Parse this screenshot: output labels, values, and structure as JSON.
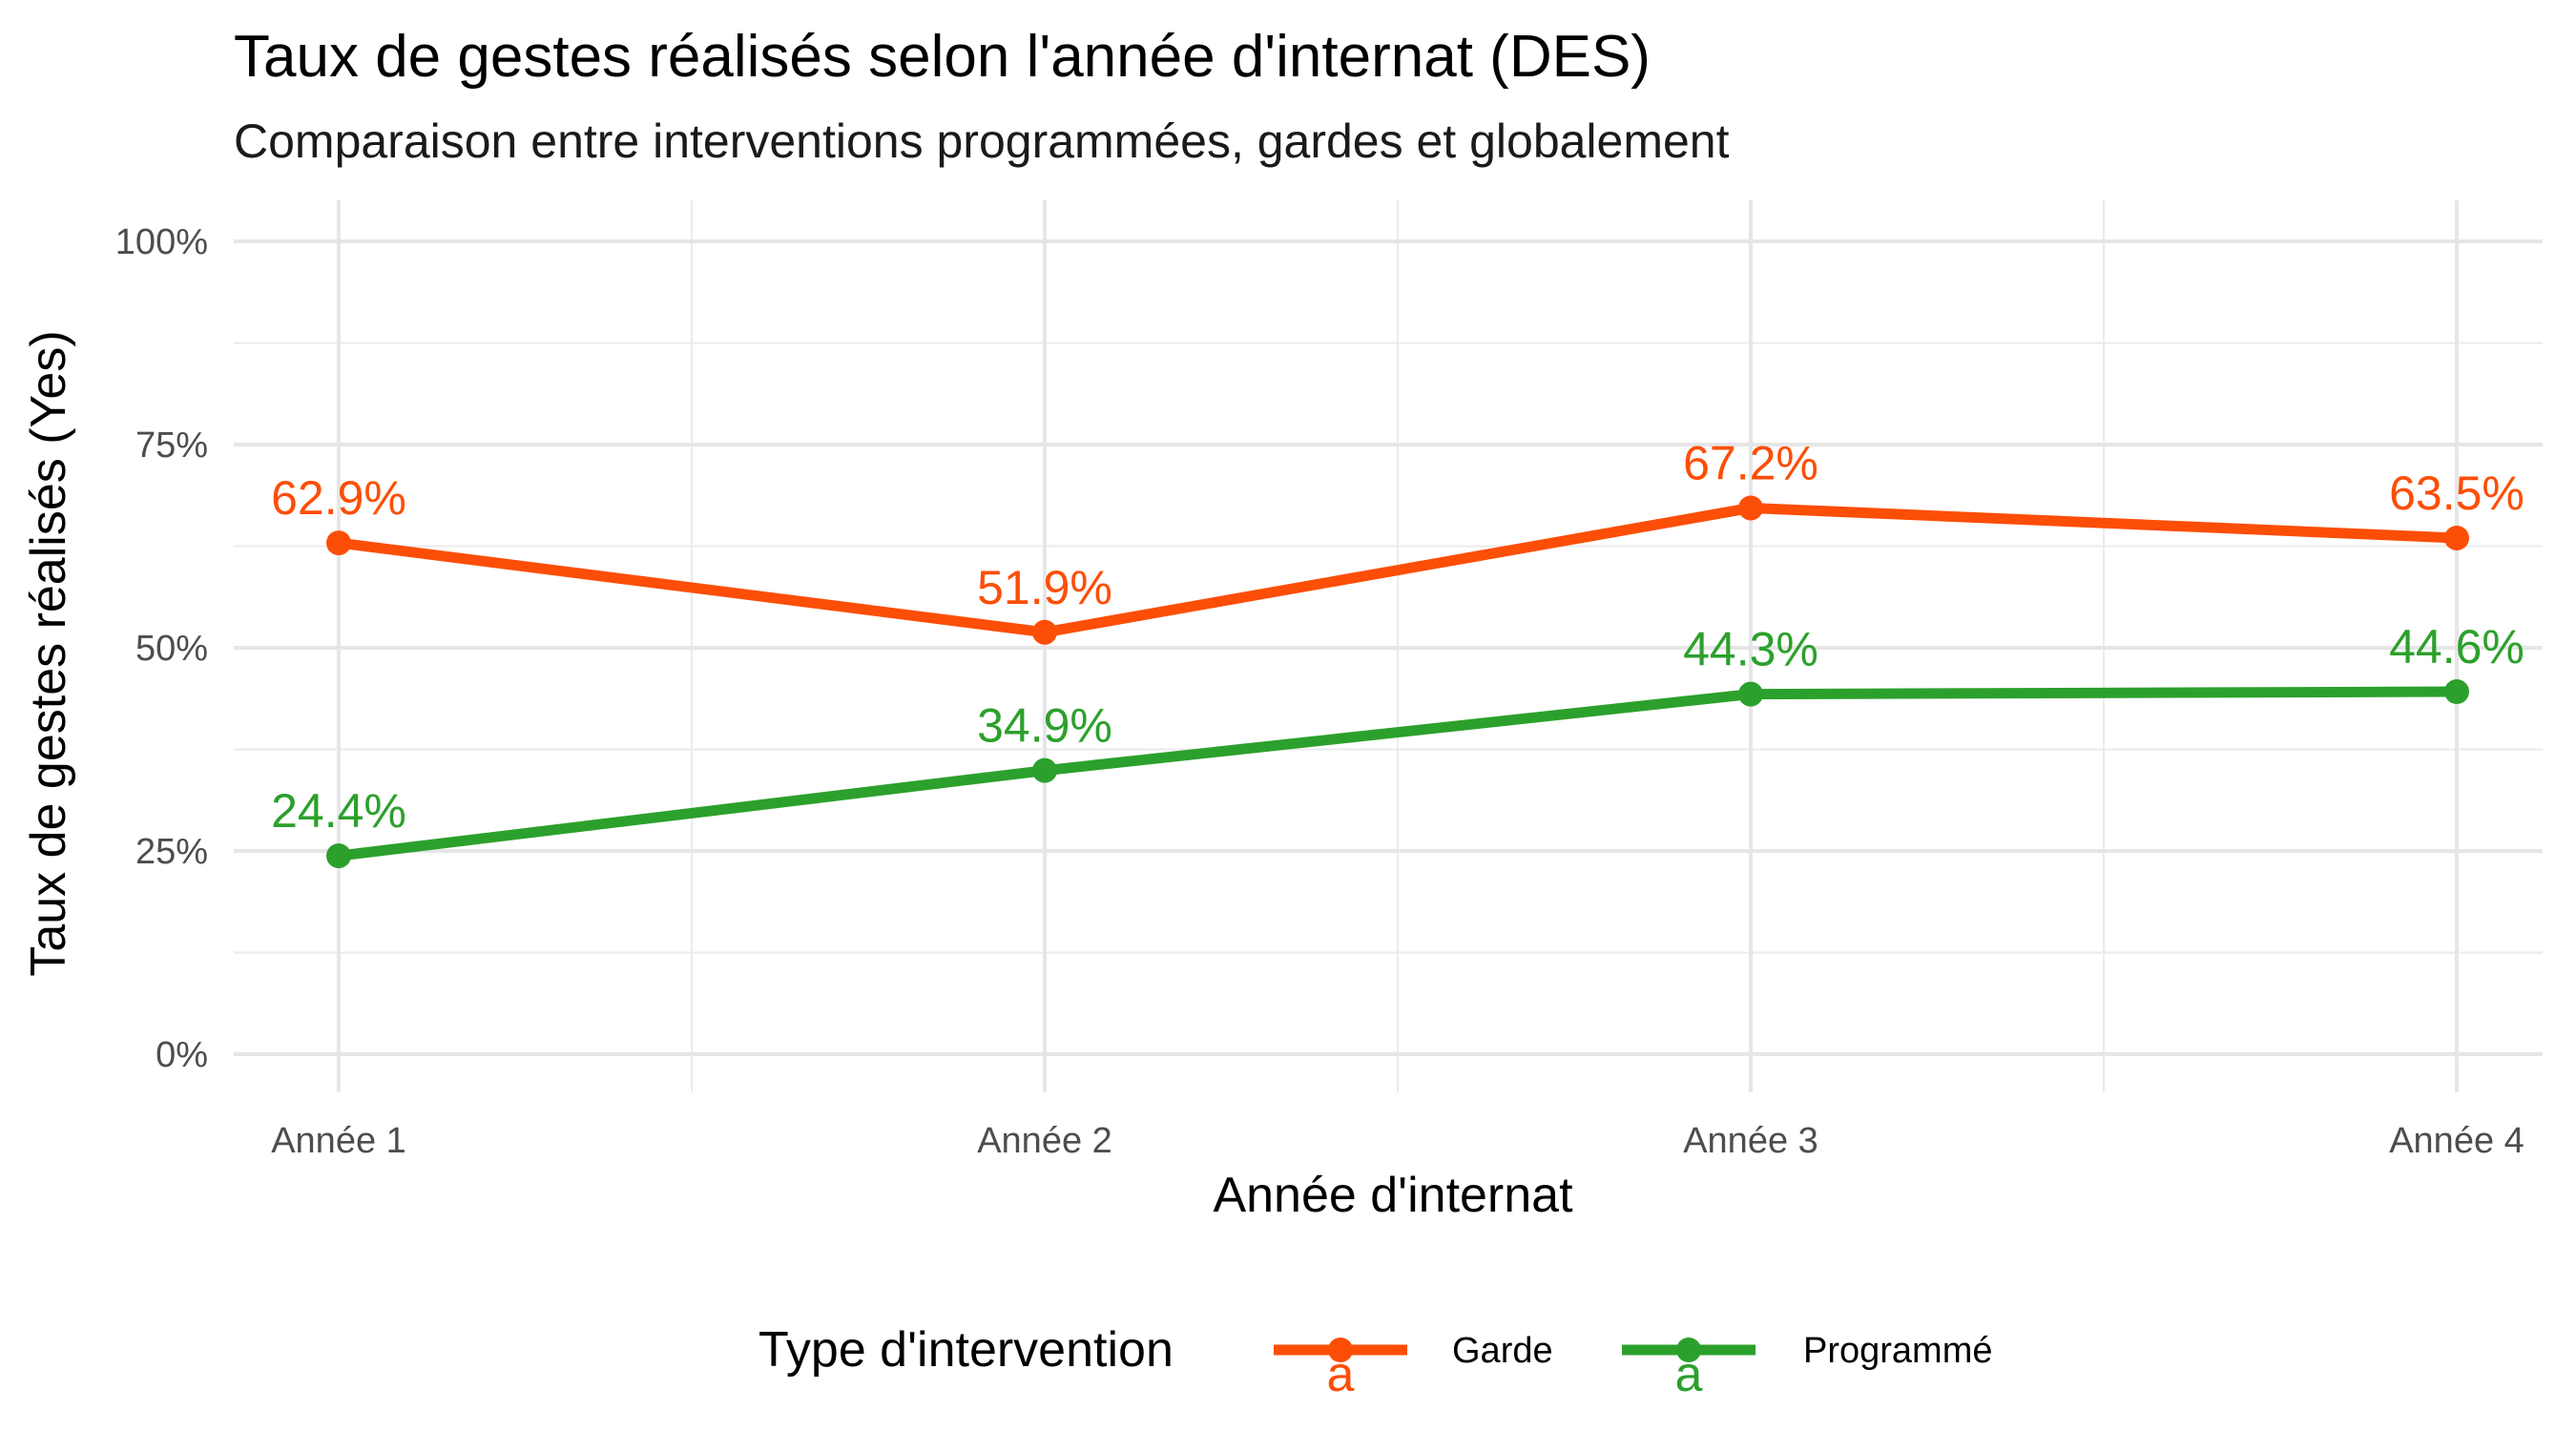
{
  "chart_data": {
    "type": "line",
    "title": "Taux de gestes réalisés selon l'année d'internat (DES)",
    "subtitle": "Comparaison entre interventions programmées, gardes et globalement",
    "xlabel": "Année d'internat",
    "ylabel": "Taux de gestes réalisés (Yes)",
    "categories": [
      "Année 1",
      "Année 2",
      "Année 3",
      "Année 4"
    ],
    "ylim": [
      0,
      100
    ],
    "yticks": [
      0,
      25,
      50,
      75,
      100
    ],
    "ytick_labels": [
      "0%",
      "25%",
      "50%",
      "75%",
      "100%"
    ],
    "grid": true,
    "legend": {
      "title": "Type d'intervention",
      "position": "bottom",
      "key_glyph": "a"
    },
    "series": [
      {
        "name": "Garde",
        "color": "#fc4e07",
        "values": [
          62.9,
          51.9,
          67.2,
          63.5
        ],
        "labels": [
          "62.9%",
          "51.9%",
          "67.2%",
          "63.5%"
        ]
      },
      {
        "name": "Programmé",
        "color": "#2ca02c",
        "values": [
          24.4,
          34.9,
          44.3,
          44.6
        ],
        "labels": [
          "24.4%",
          "34.9%",
          "44.3%",
          "44.6%"
        ]
      }
    ]
  }
}
